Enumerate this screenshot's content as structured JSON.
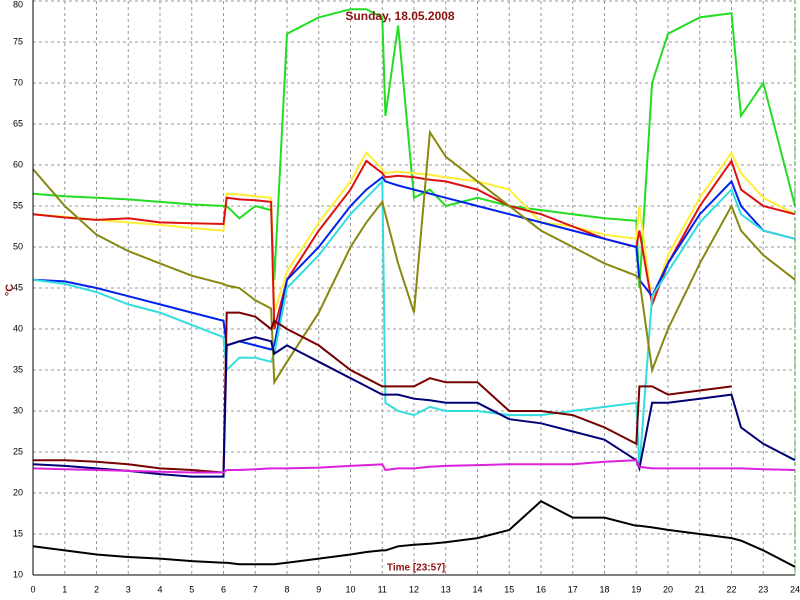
{
  "chart_data": {
    "type": "line",
    "title": "Sunday, 18.05.2008",
    "y_label": "°C",
    "x_label": "Time [23:57]",
    "x": [
      0,
      1,
      2,
      3,
      4,
      5,
      6,
      6.1,
      6.5,
      7,
      7.5,
      7.6,
      8,
      9,
      10,
      10.5,
      11,
      11.1,
      11.5,
      12,
      12.5,
      13,
      14,
      15,
      16,
      17,
      18,
      19,
      19.1,
      19.5,
      20,
      21,
      22,
      22.3,
      23,
      24
    ],
    "xlim": [
      0,
      24
    ],
    "xticks": [
      0,
      1,
      2,
      3,
      4,
      5,
      6,
      7,
      8,
      9,
      10,
      11,
      12,
      13,
      14,
      15,
      16,
      17,
      18,
      19,
      20,
      21,
      22,
      23,
      24
    ],
    "ylim": [
      10,
      80
    ],
    "yticks": [
      10,
      15,
      20,
      25,
      30,
      35,
      40,
      45,
      50,
      55,
      60,
      65,
      70,
      75,
      80
    ],
    "grid": true,
    "series": [
      {
        "color": "#22dd22",
        "values": [
          56.5,
          56.2,
          56,
          55.8,
          55.5,
          55.2,
          55,
          55,
          53.5,
          55,
          54.5,
          46,
          76,
          78,
          79,
          79,
          78,
          66,
          77,
          56,
          57,
          55,
          56,
          55,
          54.5,
          54,
          53.5,
          53.2,
          45,
          70,
          76,
          78,
          78.5,
          66,
          70,
          55
        ]
      },
      {
        "color": "#ffee33",
        "values": [
          54,
          53.7,
          53.3,
          53,
          52.7,
          52.3,
          52,
          56.5,
          56.4,
          56.2,
          56,
          42,
          47,
          53,
          58,
          61.5,
          59.5,
          59,
          59.2,
          59,
          58.8,
          58.5,
          58,
          57,
          53,
          52.5,
          51.5,
          51,
          55,
          43,
          49,
          56,
          61.5,
          59,
          56,
          54
        ]
      },
      {
        "color": "#dd1111",
        "values": [
          54,
          53.6,
          53.3,
          53.5,
          53,
          52.9,
          52.8,
          56,
          55.8,
          55.7,
          55.5,
          40,
          46,
          52,
          57,
          60.5,
          59,
          58.5,
          58.7,
          58.5,
          58.2,
          58,
          57,
          55,
          54,
          52.5,
          51,
          50,
          52,
          43,
          48,
          55,
          60.5,
          57,
          55,
          54
        ]
      },
      {
        "color": "#0022ee",
        "values": [
          46,
          45.8,
          45,
          44,
          43,
          42,
          41,
          38,
          38.5,
          38,
          37.5,
          38,
          46,
          50,
          55,
          57,
          58.5,
          58,
          57.5,
          57,
          56.5,
          56,
          55,
          54,
          53,
          52,
          51,
          50,
          46,
          44,
          48,
          54,
          58,
          55,
          52,
          51
        ]
      },
      {
        "color": "#33dddd",
        "values": [
          46,
          45.5,
          44.5,
          43,
          42,
          40.5,
          39,
          35,
          36.5,
          36.5,
          36,
          37,
          45,
          49,
          54,
          56,
          58,
          31,
          30,
          29.5,
          30.5,
          30,
          30,
          29.5,
          29.5,
          30,
          30.5,
          31,
          23,
          44,
          47,
          53,
          57,
          54,
          52,
          51
        ]
      },
      {
        "color": "#888811",
        "values": [
          59.5,
          55,
          51.5,
          49.5,
          48,
          46.5,
          45.5,
          45.3,
          45,
          43.5,
          42.5,
          33.5,
          36,
          42,
          50,
          53,
          55.5,
          54,
          48,
          42,
          64,
          61,
          58,
          55,
          52,
          50,
          48,
          46.5,
          46,
          35,
          40,
          48,
          55,
          52,
          49,
          46
        ]
      },
      {
        "color": "#770000",
        "values": [
          24,
          24,
          23.8,
          23.5,
          23,
          22.8,
          22.5,
          42,
          42,
          41.5,
          40,
          41,
          40,
          38,
          35,
          34,
          33,
          33,
          33,
          33,
          34,
          33.5,
          33.5,
          30,
          30,
          29.5,
          28,
          26,
          33,
          33,
          32,
          32.5,
          33,
          null,
          null,
          null
        ]
      },
      {
        "color": "#000077",
        "values": [
          23.5,
          23.3,
          23,
          22.7,
          22.3,
          22,
          22,
          38,
          38.5,
          39,
          38.5,
          37,
          38,
          36,
          34,
          33,
          32,
          32,
          32,
          31.5,
          31.3,
          31,
          31,
          29,
          28.5,
          27.5,
          26.5,
          24,
          23,
          31,
          31,
          31.5,
          32,
          28,
          26,
          24
        ]
      },
      {
        "color": "#dd22dd",
        "values": [
          23,
          22.9,
          22.8,
          22.7,
          22.6,
          22.5,
          22.5,
          22.8,
          22.8,
          22.9,
          23,
          23,
          23,
          23.1,
          23.3,
          23.4,
          23.5,
          22.8,
          23,
          23,
          23.2,
          23.3,
          23.4,
          23.5,
          23.5,
          23.5,
          23.8,
          24,
          23.2,
          23,
          23,
          23,
          23,
          23,
          22.9,
          22.8
        ]
      },
      {
        "color": "#000000",
        "values": [
          13.5,
          13,
          12.5,
          12.2,
          12,
          11.7,
          11.5,
          11.5,
          11.3,
          11.3,
          11.3,
          11.3,
          11.5,
          12,
          12.5,
          12.8,
          13,
          13,
          13.5,
          13.7,
          13.8,
          14,
          14.5,
          15.5,
          19,
          17,
          17,
          16,
          16,
          15.8,
          15.5,
          15,
          14.5,
          14.2,
          13,
          11
        ]
      }
    ]
  }
}
